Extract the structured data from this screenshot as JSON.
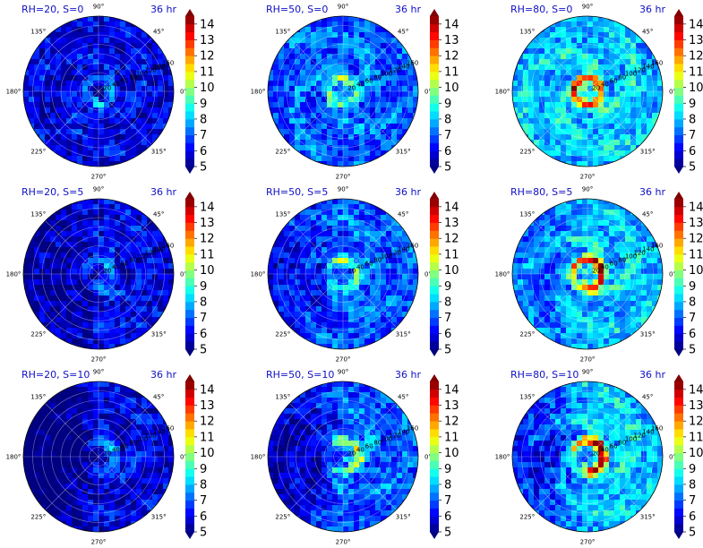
{
  "figure": {
    "time_label": "36 hr"
  },
  "chart_data": [
    {
      "type": "heatmap",
      "title": "RH=20, S=0",
      "time": "36 hr",
      "rh": 20,
      "s": 0,
      "structure": "uniform random cells, weak calm core"
    },
    {
      "type": "heatmap",
      "title": "RH=50, S=0",
      "time": "36 hr",
      "rh": 50,
      "s": 0,
      "structure": "scattered cells, weak ring"
    },
    {
      "type": "heatmap",
      "title": "RH=80, S=0",
      "time": "36 hr",
      "rh": 80,
      "s": 0,
      "structure": "strong closed eyewall ring with spiral bands"
    },
    {
      "type": "heatmap",
      "title": "RH=20, S=5",
      "time": "36 hr",
      "rh": 20,
      "s": 5,
      "structure": "asymmetric, dry west half"
    },
    {
      "type": "heatmap",
      "title": "RH=50, S=5",
      "time": "36 hr",
      "rh": 50,
      "s": 5,
      "structure": "spiral bands, moderate core"
    },
    {
      "type": "heatmap",
      "title": "RH=80, S=5",
      "time": "36 hr",
      "rh": 80,
      "s": 5,
      "structure": "tilted core with broad rain shield"
    },
    {
      "type": "heatmap",
      "title": "RH=20, S=10",
      "time": "36 hr",
      "rh": 20,
      "s": 10,
      "structure": "disorganized, scattered cells"
    },
    {
      "type": "heatmap",
      "title": "RH=50, S=10",
      "time": "36 hr",
      "rh": 50,
      "s": 10,
      "structure": "sheared convection south-east"
    },
    {
      "type": "heatmap",
      "title": "RH=80, S=10",
      "time": "36 hr",
      "rh": 80,
      "s": 10,
      "structure": "intense core, widespread moisture"
    }
  ],
  "polar_axes": {
    "angle_labels": [
      "0°",
      "45°",
      "90°",
      "135°",
      "180°",
      "225°",
      "270°",
      "315°"
    ],
    "angles_deg": [
      0,
      45,
      90,
      135,
      180,
      225,
      270,
      315
    ],
    "radial_labels": [
      "20",
      "40",
      "60",
      "80",
      "100",
      "120",
      "140",
      "160"
    ],
    "radial_values": [
      20,
      40,
      60,
      80,
      100,
      120,
      140,
      160
    ],
    "rmax": 160,
    "grid": true
  },
  "colorbar": {
    "ticks": [
      "5",
      "6",
      "7",
      "8",
      "9",
      "10",
      "11",
      "12",
      "13",
      "14"
    ],
    "vmin": 5,
    "vmax": 14.5,
    "colormap": "jet",
    "extend": "both"
  },
  "colors": {
    "title_color": "#1010c8",
    "grid_color": "#ffffff"
  }
}
